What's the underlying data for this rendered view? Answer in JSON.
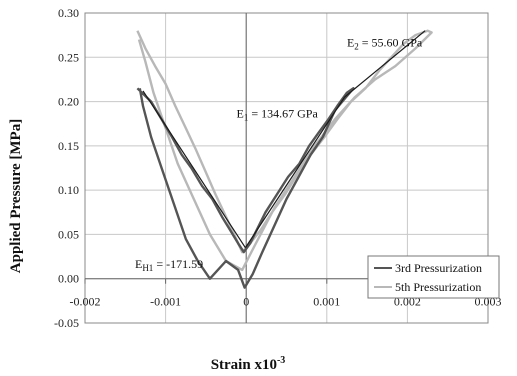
{
  "chart_data": {
    "type": "line",
    "title": "",
    "xlabel": "Strain  x10",
    "xlabel_exp": "-3",
    "ylabel": "Applied Pressure [MPa]",
    "xlim": [
      -0.002,
      0.003
    ],
    "ylim": [
      -0.05,
      0.3
    ],
    "x_ticks": [
      "-0.002",
      "-0.001",
      "0",
      "0.001",
      "0.002",
      "0.003"
    ],
    "y_ticks": [
      "-0.05",
      "0.00",
      "0.05",
      "0.10",
      "0.15",
      "0.20",
      "0.25",
      "0.30"
    ],
    "grid": true,
    "legend_position": "bottom-right",
    "series": [
      {
        "name": "3rd Pressurization",
        "color": "#555555",
        "x": [
          -0.00135,
          -0.00118,
          -0.00105,
          -0.00092,
          -0.0008,
          -0.00068,
          -0.00055,
          -0.00042,
          -0.0003,
          -0.0002,
          -0.0001,
          -3e-05,
          5e-05,
          0.00013,
          0.00024,
          0.00038,
          0.00052,
          0.00066,
          0.00078,
          0.0009,
          0.00102,
          0.00113,
          0.00125,
          0.00133,
          0.0011,
          0.00095,
          0.0008,
          0.00065,
          0.0005,
          0.00035,
          0.0002,
          8e-05,
          -2e-05,
          -0.0001,
          -0.00025,
          -0.00045,
          -0.0006,
          -0.00075,
          -0.0009,
          -0.00105,
          -0.00118,
          -0.00128,
          -0.00132
        ],
        "y": [
          0.215,
          0.2,
          0.18,
          0.16,
          0.14,
          0.125,
          0.105,
          0.09,
          0.07,
          0.055,
          0.04,
          0.03,
          0.04,
          0.055,
          0.075,
          0.095,
          0.115,
          0.13,
          0.15,
          0.165,
          0.18,
          0.195,
          0.21,
          0.215,
          0.19,
          0.16,
          0.14,
          0.115,
          0.09,
          0.06,
          0.03,
          0.005,
          -0.01,
          0.01,
          0.02,
          0.0,
          0.02,
          0.045,
          0.085,
          0.125,
          0.16,
          0.195,
          0.215
        ]
      },
      {
        "name": "5th Pressurization",
        "color": "#b8b8b8",
        "x": [
          -0.00135,
          -0.00125,
          -0.00113,
          -0.001,
          -0.00088,
          -0.00075,
          -0.00062,
          -0.0005,
          -0.00038,
          -0.00025,
          -0.00015,
          -5e-05,
          5e-05,
          0.00018,
          0.00032,
          0.00048,
          0.00065,
          0.0008,
          0.00097,
          0.00113,
          0.0013,
          0.00148,
          0.00165,
          0.0018,
          0.00195,
          0.0021,
          0.00225,
          0.0023,
          0.0021,
          0.00185,
          0.0016,
          0.00135,
          0.0011,
          0.00085,
          0.0006,
          0.00035,
          0.00012,
          -5e-05,
          -0.00025,
          -0.00045,
          -0.00065,
          -0.00085,
          -0.001,
          -0.00115,
          -0.00125,
          -0.00133
        ],
        "y": [
          0.28,
          0.26,
          0.24,
          0.22,
          0.195,
          0.17,
          0.145,
          0.12,
          0.095,
          0.07,
          0.05,
          0.03,
          0.04,
          0.055,
          0.075,
          0.095,
          0.12,
          0.14,
          0.16,
          0.18,
          0.2,
          0.215,
          0.235,
          0.25,
          0.265,
          0.275,
          0.28,
          0.278,
          0.26,
          0.24,
          0.225,
          0.205,
          0.18,
          0.15,
          0.115,
          0.08,
          0.04,
          0.01,
          0.02,
          0.05,
          0.09,
          0.13,
          0.17,
          0.21,
          0.245,
          0.27
        ]
      }
    ],
    "fit_lines": [
      {
        "x": [
          -0.00128,
          -1e-05
        ],
        "y": [
          0.212,
          0.035
        ]
      },
      {
        "x": [
          -1e-05,
          0.00122
        ],
        "y": [
          0.035,
          0.205
        ]
      },
      {
        "x": [
          0.00122,
          0.00222
        ],
        "y": [
          0.205,
          0.28
        ]
      }
    ],
    "annotations": [
      {
        "text": "E",
        "sub": "2",
        "after": " = 55.60 GPa",
        "x": 0.00125,
        "y": 0.262
      },
      {
        "text": "E",
        "sub": "1",
        "after": " = 134.67 GPa",
        "x": -0.00012,
        "y": 0.182
      },
      {
        "text": "E",
        "sub": "H1",
        "after": " = -171.59",
        "x": -0.00138,
        "y": 0.012
      }
    ]
  }
}
